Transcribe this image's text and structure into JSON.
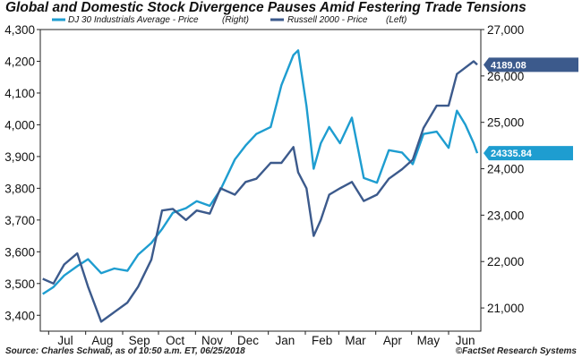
{
  "chart_data": {
    "type": "line",
    "title": "Global and Domestic Stock Divergence Pauses Amid Festering Trade Tensions",
    "x_labels": [
      "Jul",
      "Aug",
      "Sep",
      "Oct",
      "Nov",
      "Dec",
      "Jan",
      "Feb",
      "Mar",
      "Apr",
      "May",
      "Jun"
    ],
    "y_left": {
      "ticks": [
        "3,400",
        "3,500",
        "3,600",
        "3,700",
        "3,800",
        "3,900",
        "4,000",
        "4,100",
        "4,200",
        "4,300"
      ],
      "range": [
        3350,
        4300
      ]
    },
    "y_right": {
      "ticks": [
        "21,000",
        "22,000",
        "23,000",
        "24,000",
        "25,000",
        "26,000",
        "27,000"
      ],
      "range": [
        20500,
        27000
      ]
    },
    "legend_placement": "top-left",
    "series": [
      {
        "name": "DJ 30 Industrials Average - Price",
        "axis_note": "(Right)",
        "axis": "right",
        "color": "#1e9dd0",
        "last_value_label": "24335.84",
        "dates": [
          "2017-06-26",
          "2017-07-05",
          "2017-07-14",
          "2017-07-25",
          "2017-08-03",
          "2017-08-14",
          "2017-08-25",
          "2017-09-05",
          "2017-09-14",
          "2017-09-25",
          "2017-10-04",
          "2017-10-13",
          "2017-10-24",
          "2017-11-02",
          "2017-11-13",
          "2017-11-22",
          "2017-12-04",
          "2017-12-13",
          "2017-12-22",
          "2018-01-03",
          "2018-01-12",
          "2018-01-22",
          "2018-01-26",
          "2018-02-02",
          "2018-02-08",
          "2018-02-14",
          "2018-02-21",
          "2018-03-02",
          "2018-03-12",
          "2018-03-22",
          "2018-04-02",
          "2018-04-12",
          "2018-04-23",
          "2018-05-02",
          "2018-05-11",
          "2018-05-22",
          "2018-06-01",
          "2018-06-08",
          "2018-06-15",
          "2018-06-22",
          "2018-06-25"
        ],
        "values": [
          21300,
          21450,
          21700,
          21900,
          22050,
          21750,
          21850,
          21800,
          22150,
          22400,
          22700,
          23050,
          23150,
          23300,
          23200,
          23550,
          24200,
          24500,
          24750,
          24900,
          25800,
          26450,
          26550,
          25350,
          24000,
          24550,
          24900,
          24550,
          25100,
          23800,
          23700,
          24400,
          24350,
          24100,
          24750,
          24800,
          24450,
          25250,
          24950,
          24550,
          24335.84
        ]
      },
      {
        "name": "Russell 2000 - Price",
        "axis_note": "(Left)",
        "axis": "left",
        "color": "#3c5a8c",
        "last_value_label": "4189.08",
        "dates": [
          "2017-06-26",
          "2017-07-05",
          "2017-07-14",
          "2017-07-25",
          "2017-08-03",
          "2017-08-14",
          "2017-08-25",
          "2017-09-05",
          "2017-09-14",
          "2017-09-25",
          "2017-10-04",
          "2017-10-13",
          "2017-10-24",
          "2017-11-02",
          "2017-11-13",
          "2017-11-22",
          "2017-12-04",
          "2017-12-13",
          "2017-12-22",
          "2018-01-03",
          "2018-01-12",
          "2018-01-22",
          "2018-01-26",
          "2018-02-02",
          "2018-02-08",
          "2018-02-14",
          "2018-02-21",
          "2018-03-02",
          "2018-03-12",
          "2018-03-22",
          "2018-04-02",
          "2018-04-12",
          "2018-04-23",
          "2018-05-02",
          "2018-05-11",
          "2018-05-22",
          "2018-06-01",
          "2018-06-08",
          "2018-06-15",
          "2018-06-22",
          "2018-06-25"
        ],
        "values": [
          3515,
          3500,
          3560,
          3595,
          3490,
          3380,
          3410,
          3440,
          3490,
          3575,
          3730,
          3735,
          3700,
          3730,
          3720,
          3800,
          3780,
          3820,
          3830,
          3880,
          3880,
          3930,
          3850,
          3800,
          3650,
          3700,
          3780,
          3800,
          3820,
          3760,
          3780,
          3830,
          3860,
          3890,
          3990,
          4060,
          4060,
          4160,
          4180,
          4200,
          4189.08
        ]
      }
    ],
    "grid": false
  },
  "footer": {
    "source": "Source: Charles Schwab, as of 10:50 a.m. ET, 06/25/2018",
    "credit": "©FactSet Research Systems"
  }
}
